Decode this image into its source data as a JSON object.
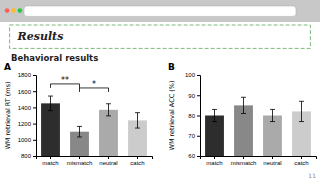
{
  "title": "Results",
  "subtitle": "Behavioral results",
  "page_number": "11",
  "chart_data": [
    {
      "type": "bar",
      "label": "A",
      "categories": [
        "match",
        "mismatch",
        "neutral",
        "catch"
      ],
      "values": [
        1450,
        1100,
        1370,
        1240
      ],
      "errors": [
        90,
        65,
        75,
        95
      ],
      "colors": [
        "#2d2d2d",
        "#888888",
        "#aaaaaa",
        "#cccccc"
      ],
      "ylabel": "WM retrieval RT (ms)",
      "ylim": [
        800,
        1800
      ],
      "yticks": [
        800,
        1000,
        1200,
        1400,
        1600,
        1800
      ],
      "grid": false,
      "annotations": [
        {
          "text": "**",
          "x": [
            "match",
            "mismatch"
          ],
          "y": 1690
        },
        {
          "text": "*",
          "x": [
            "mismatch",
            "neutral"
          ],
          "y": 1640
        }
      ]
    },
    {
      "type": "bar",
      "label": "B",
      "categories": [
        "match",
        "mismatch",
        "neutral",
        "catch"
      ],
      "values": [
        80,
        85,
        80,
        82
      ],
      "errors": [
        3,
        4,
        3,
        5
      ],
      "colors": [
        "#2d2d2d",
        "#888888",
        "#aaaaaa",
        "#cccccc"
      ],
      "ylabel": "WM retrieval ACC (%)",
      "ylim": [
        60,
        100
      ],
      "yticks": [
        60,
        70,
        80,
        90,
        100
      ],
      "grid": false
    }
  ]
}
